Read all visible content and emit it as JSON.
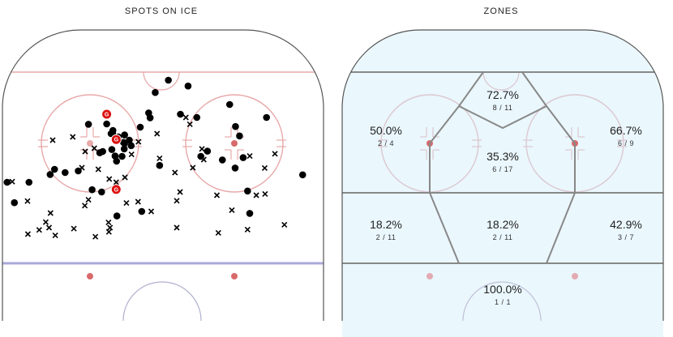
{
  "chart_data": [
    {
      "type": "scatter",
      "title": "SPOTS ON ICE",
      "legend": "none",
      "x_range": [
        -42.5,
        42.5
      ],
      "y_range": [
        100,
        0
      ],
      "markers": {
        "made": "filled-circle",
        "missed": "x",
        "goal": "G"
      },
      "series": [
        {
          "name": "made",
          "points": [
            [
              -36.5,
              34.0
            ],
            [
              -29.5,
              30.0
            ],
            [
              -23,
              30.5
            ],
            [
              -15.2,
              16.0
            ],
            [
              -19.2,
              36.3
            ],
            [
              -16.6,
              37.0
            ],
            [
              -13.5,
              18.0
            ],
            [
              -12.5,
              27.5
            ],
            [
              -12.9,
              25.9
            ],
            [
              -5.6,
              43.0
            ],
            [
              -10.3,
              22.0
            ],
            [
              -8.5,
              22.7
            ],
            [
              -1.9,
              6.3
            ],
            [
              -3.7,
              12.6
            ],
            [
              -3.3,
              14.1
            ],
            [
              -10.4,
              23.7
            ],
            [
              -10.6,
              21.7
            ],
            [
              -10.3,
              19.4
            ],
            [
              1.7,
              2.5
            ],
            [
              -0.7,
              28.8
            ],
            [
              -12.4,
              44.4
            ],
            [
              7.1,
              4.3
            ],
            [
              -26.6,
              31.0
            ],
            [
              -30.7,
              31.6
            ],
            [
              -40.5,
              40.3
            ],
            [
              -13.8,
              23.9
            ],
            [
              -16.3,
              24.5
            ],
            [
              -13.6,
              18.8
            ],
            [
              -17.1,
              24.9
            ],
            [
              -20.2,
              16.1
            ],
            [
              18.5,
              10.0
            ],
            [
              21.2,
              19.7
            ],
            [
              16.5,
              27.1
            ],
            [
              20.0,
              29.6
            ],
            [
              24.0,
              43.6
            ],
            [
              10.6,
              26.0
            ],
            [
              12.4,
              24.4
            ],
            [
              22.2,
              26.4
            ],
            [
              20.1,
              16.8
            ],
            [
              38.5,
              31.7
            ],
            [
              23.4,
              36.7
            ],
            [
              28.6,
              14.0
            ],
            [
              9.5,
              14.0
            ],
            [
              -42.5,
              34.0
            ],
            [
              -14.0,
              19.0
            ],
            [
              -12.0,
              20.0
            ],
            [
              -9.0,
              21.0
            ],
            [
              -11.0,
              26.0
            ],
            [
              5.0,
              13.0
            ],
            [
              -6.0,
              17.0
            ]
          ]
        },
        {
          "name": "missed",
          "points": [
            [
              -30.0,
              21.0
            ],
            [
              -24.5,
              20.0
            ],
            [
              -18.6,
              23.5
            ],
            [
              -21.1,
              24.5
            ],
            [
              -22.0,
              29.5
            ],
            [
              -17.5,
              30.0
            ],
            [
              -14.5,
              33.0
            ],
            [
              -12.6,
              34.0
            ],
            [
              -6.5,
              21.5
            ],
            [
              -1.4,
              19.0
            ],
            [
              -0.7,
              26.6
            ],
            [
              3.5,
              31.0
            ],
            [
              4.9,
              37.0
            ],
            [
              8.4,
              29.5
            ],
            [
              4.0,
              39.7
            ],
            [
              7.6,
              16.1
            ],
            [
              6.5,
              14.0
            ],
            [
              -20.2,
              39.4
            ],
            [
              -24.2,
              48.3
            ],
            [
              -30.6,
              43.5
            ],
            [
              -33.7,
              48.7
            ],
            [
              -31.9,
              46.3
            ],
            [
              -36.8,
              50.0
            ],
            [
              -29.3,
              50.4
            ],
            [
              -31.0,
              48.0
            ],
            [
              -41.1,
              33.8
            ],
            [
              -36.9,
              39.8
            ],
            [
              -21.2,
              41.2
            ],
            [
              -18.3,
              50.8
            ],
            [
              -14.7,
              46.4
            ],
            [
              -14.6,
              49.3
            ],
            [
              -14.3,
              48.0
            ],
            [
              -9.8,
              40.4
            ],
            [
              -6.6,
              40.0
            ],
            [
              -10.2,
              32.5
            ],
            [
              -8.4,
              25.4
            ],
            [
              10.9,
              23.7
            ],
            [
              11.4,
              27.0
            ],
            [
              24.0,
              25.9
            ],
            [
              25.8,
              38.0
            ],
            [
              28.2,
              37.6
            ],
            [
              15.0,
              38.0
            ],
            [
              19.1,
              42.6
            ],
            [
              30.9,
              25.2
            ],
            [
              28.1,
              29.6
            ],
            [
              33.5,
              47.1
            ],
            [
              23.4,
              48.6
            ],
            [
              15.4,
              49.6
            ],
            [
              4.0,
              48.0
            ],
            [
              -3.0,
              43.0
            ]
          ]
        },
        {
          "name": "goal",
          "points": [
            [
              -15.2,
              13.0
            ],
            [
              -12.6,
              20.8
            ],
            [
              -12.6,
              36.2
            ]
          ]
        }
      ]
    },
    {
      "type": "table",
      "title": "ZONES",
      "zones": [
        {
          "pct": "72.7%",
          "frac": "8 / 11"
        },
        {
          "pct": "50.0%",
          "frac": "2 / 4"
        },
        {
          "pct": "35.3%",
          "frac": "6 / 17"
        },
        {
          "pct": "66.7%",
          "frac": "6 / 9"
        },
        {
          "pct": "18.2%",
          "frac": "2 / 11"
        },
        {
          "pct": "18.2%",
          "frac": "2 / 11"
        },
        {
          "pct": "42.9%",
          "frac": "3 / 7"
        },
        {
          "pct": "100.0%",
          "frac": "1 / 1"
        }
      ]
    }
  ],
  "colors": {
    "rink_line": "#e8a9a9",
    "rink_border": "#555555",
    "blue_line": "#a8a8d8",
    "zone_fill": "#eaf7fd",
    "zone_line": "#888888",
    "made": "#000000",
    "goal": "#dd1111"
  }
}
